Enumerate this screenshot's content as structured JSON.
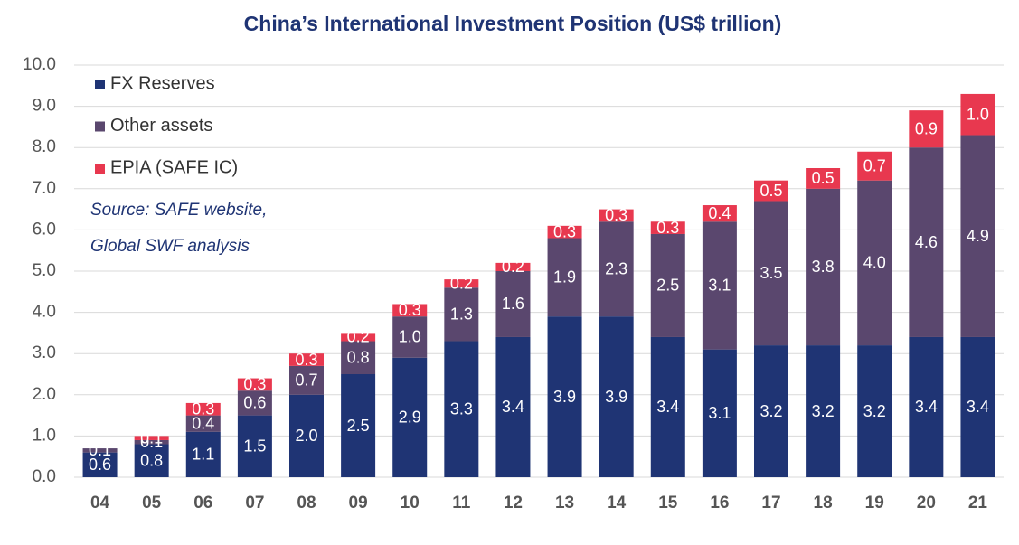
{
  "chart_data": {
    "type": "stacked-bar",
    "title": "China’s International Investment Position (US$ trillion)",
    "categories": [
      "04",
      "05",
      "06",
      "07",
      "08",
      "09",
      "10",
      "11",
      "12",
      "13",
      "14",
      "15",
      "16",
      "17",
      "18",
      "19",
      "20",
      "21"
    ],
    "series": [
      {
        "name": "FX Reserves",
        "color": "#1f3474",
        "values": [
          0.6,
          0.8,
          1.1,
          1.5,
          2.0,
          2.5,
          2.9,
          3.3,
          3.4,
          3.9,
          3.9,
          3.4,
          3.1,
          3.2,
          3.2,
          3.2,
          3.4,
          3.4
        ],
        "value_labels": [
          "0.6",
          "0.8",
          "1.1",
          "1.5",
          "2.0",
          "2.5",
          "2.9",
          "3.3",
          "3.4",
          "3.9",
          "3.9",
          "3.4",
          "3.1",
          "3.2",
          "3.2",
          "3.2",
          "3.4",
          "3.4"
        ]
      },
      {
        "name": "Other assets",
        "color": "#5a476e",
        "values": [
          0.1,
          0.1,
          0.4,
          0.6,
          0.7,
          0.8,
          1.0,
          1.3,
          1.6,
          1.9,
          2.3,
          2.5,
          3.1,
          3.5,
          3.8,
          4.0,
          4.6,
          4.9
        ],
        "value_labels": [
          "0.1",
          "0.1",
          "0.4",
          "0.6",
          "0.7",
          "0.8",
          "1.0",
          "1.3",
          "1.6",
          "1.9",
          "2.3",
          "2.5",
          "3.1",
          "3.5",
          "3.8",
          "4.0",
          "4.6",
          "4.9"
        ]
      },
      {
        "name": "EPIA (SAFE IC)",
        "color": "#e8384f",
        "values": [
          null,
          0.1,
          0.3,
          0.3,
          0.3,
          0.2,
          0.3,
          0.2,
          0.2,
          0.3,
          0.3,
          0.3,
          0.4,
          0.5,
          0.5,
          0.7,
          0.9,
          1.0
        ],
        "value_labels": [
          null,
          "0.1",
          "0.3",
          "0.3",
          "0.3",
          "0.2",
          "0.3",
          "0.2",
          "0.2",
          "0.3",
          "0.3",
          "0.3",
          "0.4",
          "0.5",
          "0.5",
          "0.7",
          "0.9",
          "1.0"
        ]
      }
    ],
    "ylim": [
      0,
      10
    ],
    "yticks": [
      {
        "value": 0,
        "label": "0.0"
      },
      {
        "value": 1,
        "label": "1.0"
      },
      {
        "value": 2,
        "label": "2.0"
      },
      {
        "value": 3,
        "label": "3.0"
      },
      {
        "value": 4,
        "label": "4.0"
      },
      {
        "value": 5,
        "label": "5.0"
      },
      {
        "value": 6,
        "label": "6.0"
      },
      {
        "value": 7,
        "label": "7.0"
      },
      {
        "value": 8,
        "label": "8.0"
      },
      {
        "value": 9,
        "label": "9.0"
      },
      {
        "value": 10,
        "label": "10.0"
      }
    ],
    "grid": true,
    "legend": "top-left",
    "annotations": [
      "Source: SAFE website,",
      "Global SWF analysis"
    ]
  }
}
